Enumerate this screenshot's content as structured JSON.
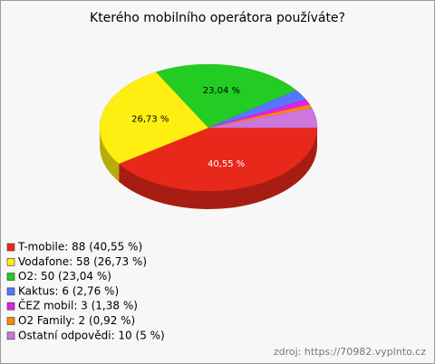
{
  "chart_data": {
    "type": "pie",
    "title": "Kterého mobilního operátora používáte?",
    "categories": [
      "T-mobile: 88 (40,55 %)",
      "Vodafone: 58 (26,73 %)",
      "O2: 50 (23,04 %)",
      "Kaktus: 6 (2,76 %)",
      "ČEZ mobil: 3 (1,38 %)",
      "O2 Family: 2 (0,92 %)",
      "Ostatní odpovědi: 10 (5 %)"
    ],
    "values": [
      40.55,
      26.73,
      23.04,
      2.76,
      1.38,
      0.92,
      5
    ],
    "value_labels": [
      "40,55 %",
      "26,73 %",
      "23,04 %",
      null,
      null,
      null,
      null
    ],
    "colors": [
      "#e8281a",
      "#ffee11",
      "#22cc22",
      "#5577ff",
      "#e022e0",
      "#ff8800",
      "#cc77dd"
    ],
    "source": "zdroj: https://70982.vyplnto.cz"
  }
}
